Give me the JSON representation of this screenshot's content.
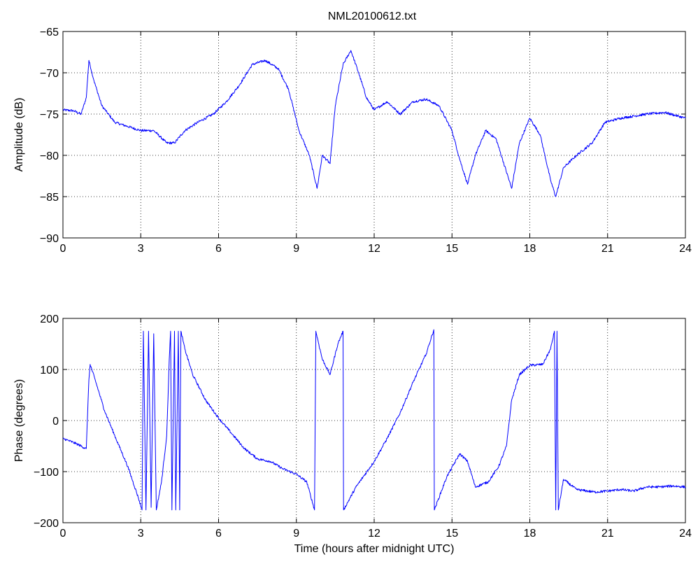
{
  "title": "NML20100612.txt",
  "colors": {
    "line": "#0000ff",
    "axes": "#000000",
    "background": "#ffffff"
  },
  "chart_data": [
    {
      "type": "line",
      "title": "NML20100612.txt",
      "xlabel": "",
      "ylabel": "Amplitude (dB)",
      "xlim": [
        0,
        24
      ],
      "ylim": [
        -90,
        -65
      ],
      "xticks": [
        0,
        3,
        6,
        9,
        12,
        15,
        18,
        21,
        24
      ],
      "yticks": [
        -90,
        -85,
        -80,
        -75,
        -70,
        -65
      ],
      "xtick_labels": [
        "0",
        "3",
        "6",
        "9",
        "12",
        "15",
        "18",
        "21",
        "24"
      ],
      "ytick_labels": [
        "−90",
        "−85",
        "−80",
        "−75",
        "−70",
        "−65"
      ],
      "grid": true,
      "series": [
        {
          "color": "#0000ff",
          "points": [
            [
              0.0,
              -74.5
            ],
            [
              0.4,
              -74.6
            ],
            [
              0.7,
              -75.0
            ],
            [
              0.9,
              -73.0
            ],
            [
              1.0,
              -68.5
            ],
            [
              1.2,
              -71.0
            ],
            [
              1.5,
              -74.0
            ],
            [
              2.0,
              -76.0
            ],
            [
              2.5,
              -76.5
            ],
            [
              3.0,
              -77.0
            ],
            [
              3.5,
              -77.0
            ],
            [
              4.0,
              -78.5
            ],
            [
              4.3,
              -78.5
            ],
            [
              4.7,
              -77.0
            ],
            [
              5.2,
              -76.0
            ],
            [
              5.8,
              -75.0
            ],
            [
              6.3,
              -73.5
            ],
            [
              6.8,
              -71.5
            ],
            [
              7.3,
              -69.0
            ],
            [
              7.8,
              -68.5
            ],
            [
              8.3,
              -69.5
            ],
            [
              8.7,
              -72.0
            ],
            [
              9.1,
              -77.0
            ],
            [
              9.5,
              -80.0
            ],
            [
              9.8,
              -84.0
            ],
            [
              10.0,
              -80.0
            ],
            [
              10.3,
              -81.0
            ],
            [
              10.5,
              -74.0
            ],
            [
              10.8,
              -69.0
            ],
            [
              11.1,
              -67.3
            ],
            [
              11.4,
              -70.0
            ],
            [
              11.7,
              -73.0
            ],
            [
              12.0,
              -74.5
            ],
            [
              12.5,
              -73.5
            ],
            [
              13.0,
              -75.0
            ],
            [
              13.5,
              -73.5
            ],
            [
              14.0,
              -73.2
            ],
            [
              14.5,
              -74.0
            ],
            [
              15.0,
              -77.0
            ],
            [
              15.3,
              -80.5
            ],
            [
              15.6,
              -83.5
            ],
            [
              15.9,
              -80.0
            ],
            [
              16.3,
              -77.0
            ],
            [
              16.7,
              -78.0
            ],
            [
              17.0,
              -81.0
            ],
            [
              17.3,
              -84.0
            ],
            [
              17.6,
              -78.5
            ],
            [
              18.0,
              -75.5
            ],
            [
              18.4,
              -77.5
            ],
            [
              18.8,
              -83.0
            ],
            [
              19.0,
              -85.0
            ],
            [
              19.3,
              -81.5
            ],
            [
              19.8,
              -80.0
            ],
            [
              20.4,
              -78.5
            ],
            [
              20.9,
              -76.0
            ],
            [
              21.5,
              -75.5
            ],
            [
              22.5,
              -75.0
            ],
            [
              23.2,
              -74.8
            ],
            [
              24.0,
              -75.5
            ]
          ]
        }
      ]
    },
    {
      "type": "line",
      "title": "",
      "xlabel": "Time (hours after midnight UTC)",
      "ylabel": "Phase (degrees)",
      "xlim": [
        0,
        24
      ],
      "ylim": [
        -200,
        200
      ],
      "xticks": [
        0,
        3,
        6,
        9,
        12,
        15,
        18,
        21,
        24
      ],
      "yticks": [
        -200,
        -100,
        0,
        100,
        200
      ],
      "xtick_labels": [
        "0",
        "3",
        "6",
        "9",
        "12",
        "15",
        "18",
        "21",
        "24"
      ],
      "ytick_labels": [
        "−200",
        "−100",
        "0",
        "100",
        "200"
      ],
      "grid": true,
      "series": [
        {
          "color": "#0000ff",
          "points": [
            [
              0.0,
              -35
            ],
            [
              0.5,
              -45
            ],
            [
              0.9,
              -55
            ],
            [
              1.0,
              80
            ],
            [
              1.05,
              110
            ],
            [
              1.3,
              70
            ],
            [
              1.6,
              20
            ],
            [
              2.0,
              -30
            ],
            [
              2.5,
              -90
            ],
            [
              2.9,
              -150
            ],
            [
              3.05,
              -175
            ],
            [
              3.1,
              175
            ],
            [
              3.2,
              -175
            ],
            [
              3.3,
              175
            ],
            [
              3.4,
              -170
            ],
            [
              3.5,
              170
            ],
            [
              3.6,
              -175
            ],
            [
              3.8,
              -120
            ],
            [
              4.0,
              -30
            ],
            [
              4.1,
              120
            ],
            [
              4.15,
              175
            ],
            [
              4.2,
              -175
            ],
            [
              4.3,
              175
            ],
            [
              4.35,
              -175
            ],
            [
              4.45,
              175
            ],
            [
              4.5,
              -175
            ],
            [
              4.55,
              175
            ],
            [
              4.7,
              140
            ],
            [
              5.0,
              90
            ],
            [
              5.5,
              40
            ],
            [
              6.0,
              5
            ],
            [
              6.5,
              -25
            ],
            [
              7.0,
              -55
            ],
            [
              7.5,
              -75
            ],
            [
              8.0,
              -80
            ],
            [
              8.5,
              -95
            ],
            [
              9.0,
              -105
            ],
            [
              9.4,
              -120
            ],
            [
              9.7,
              -175
            ],
            [
              9.75,
              175
            ],
            [
              10.0,
              120
            ],
            [
              10.3,
              90
            ],
            [
              10.6,
              150
            ],
            [
              10.8,
              175
            ],
            [
              10.82,
              -175
            ],
            [
              11.3,
              -130
            ],
            [
              12.0,
              -80
            ],
            [
              12.5,
              -35
            ],
            [
              13.0,
              15
            ],
            [
              13.5,
              75
            ],
            [
              14.0,
              130
            ],
            [
              14.3,
              178
            ],
            [
              14.32,
              -175
            ],
            [
              14.8,
              -110
            ],
            [
              15.3,
              -65
            ],
            [
              15.6,
              -80
            ],
            [
              15.9,
              -130
            ],
            [
              16.4,
              -120
            ],
            [
              16.8,
              -90
            ],
            [
              17.1,
              -50
            ],
            [
              17.3,
              40
            ],
            [
              17.6,
              90
            ],
            [
              18.0,
              108
            ],
            [
              18.5,
              110
            ],
            [
              18.8,
              140
            ],
            [
              18.95,
              175
            ],
            [
              19.0,
              -175
            ],
            [
              19.05,
              175
            ],
            [
              19.1,
              -175
            ],
            [
              19.3,
              -115
            ],
            [
              19.8,
              -135
            ],
            [
              20.5,
              -140
            ],
            [
              21.0,
              -138
            ],
            [
              21.5,
              -135
            ],
            [
              22.0,
              -138
            ],
            [
              22.5,
              -130
            ],
            [
              23.0,
              -130
            ],
            [
              23.5,
              -128
            ],
            [
              24.0,
              -130
            ]
          ]
        }
      ]
    }
  ]
}
